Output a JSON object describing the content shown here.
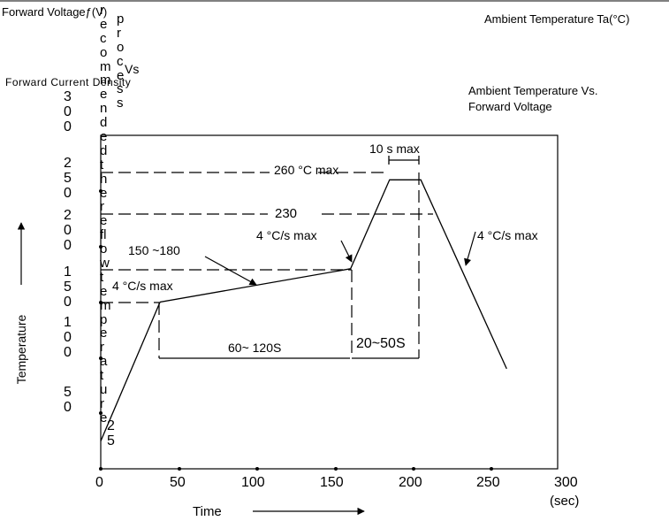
{
  "header": {
    "forward_voltage": "Forward Voltageƒ(V)",
    "ambient_temp": "Ambient Temperature Ta(°C)",
    "forward_current_density": "Forward Current Density",
    "ambient_vs_voltage_line1": "Ambient Temperature Vs.",
    "ambient_vs_voltage_line2": "Forward Voltage",
    "process": "process",
    "vs": "Vs",
    "recommended_text": "recommended the reflow temperature"
  },
  "chart_data": {
    "type": "line",
    "title": "",
    "xlabel": "Time",
    "ylabel": "Temperature",
    "x_unit": "(sec)",
    "xlim": [
      0,
      300
    ],
    "ylim": [
      0,
      300
    ],
    "x_ticks": [
      "0",
      "50",
      "100",
      "150",
      "200",
      "250",
      "300"
    ],
    "y_ticks": [
      "25",
      "50",
      "100",
      "150",
      "200",
      "250",
      "300"
    ],
    "series": [
      {
        "points": [
          [
            0,
            25
          ],
          [
            38,
            150
          ],
          [
            160,
            180
          ],
          [
            185,
            260
          ],
          [
            205,
            260
          ],
          [
            260,
            90
          ]
        ]
      }
    ],
    "annotations": {
      "peak": "260 °C max",
      "peak_time": "10 s max",
      "level_230": "230",
      "preheat_range": "150 ~180",
      "ramp_up_1": "4 °C/s max",
      "ramp_up_2": "4 °C/s max",
      "ramp_down": "4 °C/s max",
      "preheat_time": "60~ 120S",
      "above_230_time": "20~50S"
    }
  }
}
